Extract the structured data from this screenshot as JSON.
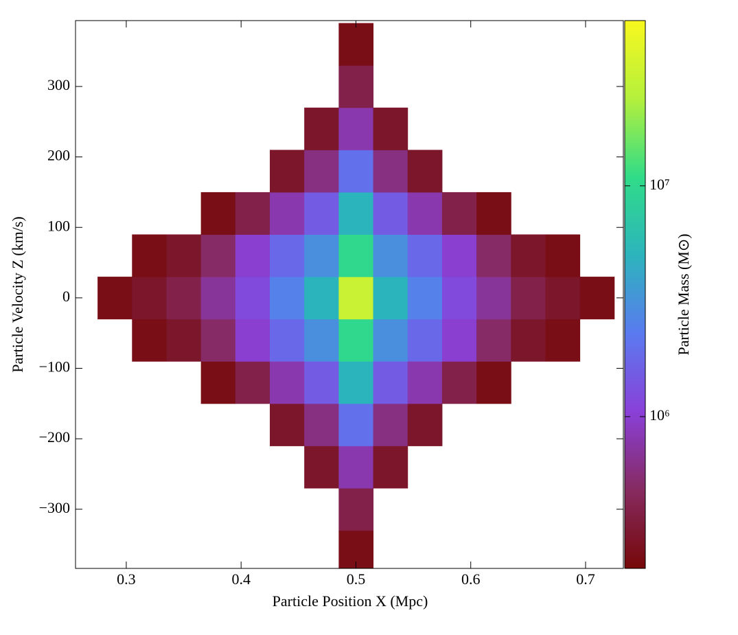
{
  "chart_data": {
    "type": "heatmap",
    "xlabel": "Particle Position X  (Mpc)",
    "ylabel": "Particle Velocity Z  (km/s)",
    "colorbar_label": "Particle Mass  (M⊙)",
    "xlim": [
      0.2558,
      0.7329
    ],
    "ylim": [
      -384,
      393.5
    ],
    "xticks": [
      0.3,
      0.4,
      0.5,
      0.6,
      0.7
    ],
    "yticks": [
      {
        "value": -300,
        "label": "−300"
      },
      {
        "value": -200,
        "label": "−200"
      },
      {
        "value": -100,
        "label": "−100"
      },
      0,
      100,
      200,
      300
    ],
    "xbins": [
      0.275,
      0.305,
      0.335,
      0.365,
      0.395,
      0.425,
      0.455,
      0.485,
      0.515,
      0.545,
      0.575,
      0.605,
      0.635,
      0.665,
      0.695,
      0.725
    ],
    "ybins": [
      -390,
      -330,
      -270,
      -210,
      -150,
      -90,
      -30,
      30,
      90,
      150,
      210,
      270,
      330,
      390
    ],
    "values": [
      [
        null,
        null,
        null,
        null,
        null,
        null,
        null,
        250000,
        null,
        null,
        null,
        null,
        null,
        null,
        null
      ],
      [
        null,
        null,
        null,
        null,
        null,
        null,
        null,
        400000,
        null,
        null,
        null,
        null,
        null,
        null,
        null
      ],
      [
        null,
        null,
        null,
        null,
        null,
        null,
        300000,
        800000,
        300000,
        null,
        null,
        null,
        null,
        null,
        null
      ],
      [
        null,
        null,
        null,
        null,
        null,
        300000,
        600000,
        2000000,
        600000,
        300000,
        null,
        null,
        null,
        null,
        null
      ],
      [
        null,
        null,
        null,
        250000,
        400000,
        800000,
        1500000,
        5000000,
        1500000,
        800000,
        400000,
        250000,
        null,
        null,
        null
      ],
      [
        null,
        250000,
        300000,
        500000,
        1000000,
        1800000,
        3000000,
        10000000,
        3000000,
        1800000,
        1000000,
        500000,
        300000,
        250000,
        null
      ],
      [
        250000,
        300000,
        400000,
        700000,
        1200000,
        2500000,
        5000000,
        30000000,
        5000000,
        2500000,
        1200000,
        700000,
        400000,
        300000,
        250000
      ],
      [
        null,
        250000,
        300000,
        500000,
        1000000,
        1800000,
        3000000,
        10000000,
        3000000,
        1800000,
        1000000,
        500000,
        300000,
        250000,
        null
      ],
      [
        null,
        null,
        null,
        250000,
        400000,
        800000,
        1500000,
        5000000,
        1500000,
        800000,
        400000,
        250000,
        null,
        null,
        null
      ],
      [
        null,
        null,
        null,
        null,
        null,
        300000,
        600000,
        2000000,
        600000,
        300000,
        null,
        null,
        null,
        null,
        null
      ],
      [
        null,
        null,
        null,
        null,
        null,
        null,
        300000,
        800000,
        300000,
        null,
        null,
        null,
        null,
        null,
        null
      ],
      [
        null,
        null,
        null,
        null,
        null,
        null,
        null,
        400000,
        null,
        null,
        null,
        null,
        null,
        null,
        null
      ],
      [
        null,
        null,
        null,
        null,
        null,
        null,
        null,
        250000,
        null,
        null,
        null,
        null,
        null,
        null,
        null
      ]
    ],
    "clim": [
      220000,
      52000000
    ],
    "color_scale": "log",
    "cticks": [
      {
        "value": 1000000,
        "label": "10⁶"
      },
      {
        "value": 10000000,
        "label": "10⁷"
      }
    ],
    "colormap": [
      "#760808",
      "#862a60",
      "#8a40d8",
      "#5a7af0",
      "#2cb4bc",
      "#30dc88",
      "#b4f03c",
      "#f8f81e"
    ]
  }
}
